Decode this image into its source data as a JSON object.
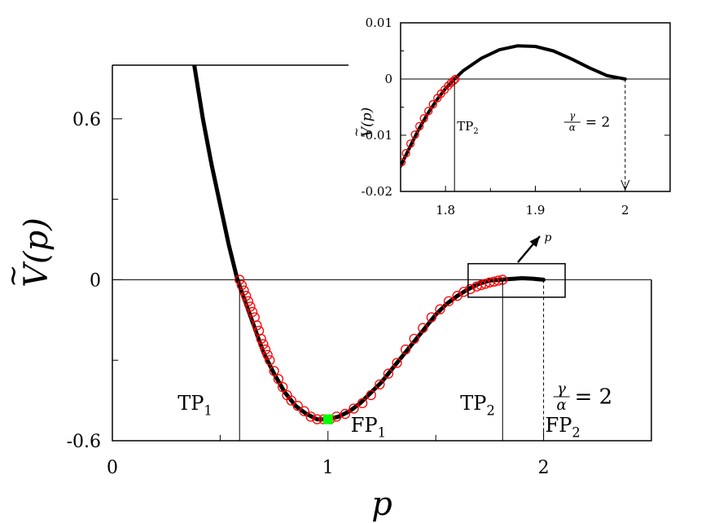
{
  "chart_data": [
    {
      "type": "line",
      "xlabel": "p",
      "ylabel": "V(p)",
      "ylabel_tilde": "~",
      "xlim": [
        0,
        2.5
      ],
      "ylim": [
        -0.6,
        0.8
      ],
      "xticks": [
        {
          "v": 0,
          "label": "0"
        },
        {
          "v": 1,
          "label": "1"
        },
        {
          "v": 2,
          "label": "2"
        }
      ],
      "xticks_minor": [
        0.5,
        1.5
      ],
      "yticks": [
        {
          "v": 0.6,
          "label": "0.6"
        },
        {
          "v": 0,
          "label": "0"
        },
        {
          "v": -0.6,
          "label": "-0.6"
        }
      ],
      "yticks_minor": [
        0.3,
        -0.3
      ],
      "series": [
        {
          "kind": "curve",
          "color": "#000000",
          "x": [
            0.38,
            0.42,
            0.46,
            0.5,
            0.54,
            0.58,
            0.62,
            0.66,
            0.7,
            0.75,
            0.8,
            0.85,
            0.9,
            0.95,
            1.0,
            1.05,
            1.1,
            1.15,
            1.2,
            1.25,
            1.3,
            1.35,
            1.4,
            1.45,
            1.5,
            1.55,
            1.6,
            1.65,
            1.7,
            1.75,
            1.8,
            1.85,
            1.9,
            1.95,
            2.0
          ],
          "y": [
            0.8,
            0.6,
            0.43,
            0.28,
            0.13,
            0.0,
            -0.09,
            -0.18,
            -0.27,
            -0.35,
            -0.42,
            -0.47,
            -0.5,
            -0.52,
            -0.52,
            -0.51,
            -0.49,
            -0.46,
            -0.42,
            -0.38,
            -0.33,
            -0.28,
            -0.23,
            -0.18,
            -0.13,
            -0.09,
            -0.06,
            -0.035,
            -0.015,
            -0.003,
            0.0,
            0.003,
            0.006,
            0.004,
            0.0
          ]
        },
        {
          "kind": "markers",
          "color": "#ff0000",
          "x": [
            0.59,
            0.6,
            0.61,
            0.62,
            0.63,
            0.64,
            0.65,
            0.66,
            0.67,
            0.68,
            0.69,
            0.7,
            0.71,
            0.72,
            0.73,
            0.75,
            0.77,
            0.79,
            0.81,
            0.83,
            0.86,
            0.89,
            0.92,
            0.95,
            0.98,
            1.01,
            1.04,
            1.08,
            1.12,
            1.16,
            1.2,
            1.24,
            1.28,
            1.32,
            1.36,
            1.4,
            1.44,
            1.48,
            1.52,
            1.56,
            1.6,
            1.63,
            1.66,
            1.69,
            1.71,
            1.73,
            1.75,
            1.77,
            1.79,
            1.81
          ],
          "y": [
            0.0,
            -0.02,
            -0.04,
            -0.06,
            -0.08,
            -0.1,
            -0.12,
            -0.14,
            -0.17,
            -0.19,
            -0.22,
            -0.24,
            -0.26,
            -0.28,
            -0.3,
            -0.34,
            -0.37,
            -0.4,
            -0.43,
            -0.45,
            -0.47,
            -0.49,
            -0.51,
            -0.52,
            -0.52,
            -0.52,
            -0.51,
            -0.5,
            -0.48,
            -0.46,
            -0.43,
            -0.39,
            -0.35,
            -0.31,
            -0.26,
            -0.22,
            -0.18,
            -0.14,
            -0.11,
            -0.08,
            -0.06,
            -0.045,
            -0.035,
            -0.025,
            -0.02,
            -0.015,
            -0.01,
            -0.007,
            -0.003,
            0.0
          ]
        },
        {
          "kind": "point",
          "color": "#00ff00",
          "x": [
            1.0
          ],
          "y": [
            -0.52
          ]
        }
      ],
      "annotations": [
        {
          "label": "TP",
          "sub": "1",
          "x": 0.59
        },
        {
          "label": "FP",
          "sub": "1",
          "x": 1.0,
          "y": -0.52
        },
        {
          "label": "TP",
          "sub": "2",
          "x": 1.81
        },
        {
          "label": "FP",
          "sub": "2",
          "x": 2.0
        },
        {
          "ratio_num": "γ",
          "ratio_den": "α",
          "ratio_eq": "= 2",
          "x": 2.0
        }
      ],
      "zoom_box": {
        "x": [
          1.65,
          2.1
        ],
        "y": [
          -0.065,
          0.06
        ]
      }
    },
    {
      "type": "line",
      "xlabel": "p",
      "ylabel": "V(p)",
      "ylabel_tilde": "~",
      "xlim": [
        1.75,
        2.05
      ],
      "ylim": [
        -0.02,
        0.01
      ],
      "xticks": [
        {
          "v": 1.8,
          "label": "1.8"
        },
        {
          "v": 1.9,
          "label": "1.9"
        },
        {
          "v": 2.0,
          "label": "2"
        }
      ],
      "xticks_minor": [
        1.85,
        1.95
      ],
      "yticks": [
        {
          "v": 0.01,
          "label": "0.01"
        },
        {
          "v": 0,
          "label": "0"
        },
        {
          "v": -0.01,
          "label": "-0.01"
        },
        {
          "v": -0.02,
          "label": "-0.02"
        }
      ],
      "yticks_minor": [
        0.005,
        -0.005,
        -0.015
      ],
      "series": [
        {
          "kind": "curve",
          "color": "#000000",
          "x": [
            1.75,
            1.76,
            1.77,
            1.78,
            1.79,
            1.8,
            1.81,
            1.82,
            1.84,
            1.86,
            1.88,
            1.9,
            1.92,
            1.94,
            1.96,
            1.98,
            2.0
          ],
          "y": [
            -0.0155,
            -0.0122,
            -0.009,
            -0.0062,
            -0.0038,
            -0.0017,
            0.0,
            0.0015,
            0.0037,
            0.0052,
            0.0059,
            0.0058,
            0.005,
            0.0036,
            0.002,
            0.0006,
            0.0
          ]
        },
        {
          "kind": "markers",
          "color": "#ff0000",
          "x": [
            1.751,
            1.756,
            1.761,
            1.766,
            1.771,
            1.776,
            1.781,
            1.786,
            1.791,
            1.795,
            1.799,
            1.803,
            1.806,
            1.809,
            1.811
          ],
          "y": [
            -0.0148,
            -0.0132,
            -0.0115,
            -0.0099,
            -0.0084,
            -0.007,
            -0.0057,
            -0.0045,
            -0.0034,
            -0.0026,
            -0.0019,
            -0.0012,
            -0.0007,
            -0.0003,
            0.0
          ]
        }
      ],
      "annotations": [
        {
          "label": "TP",
          "sub": "2",
          "x": 1.81
        },
        {
          "ratio_num": "γ",
          "ratio_den": "α",
          "ratio_eq": "= 2",
          "x": 2.0
        }
      ]
    }
  ]
}
